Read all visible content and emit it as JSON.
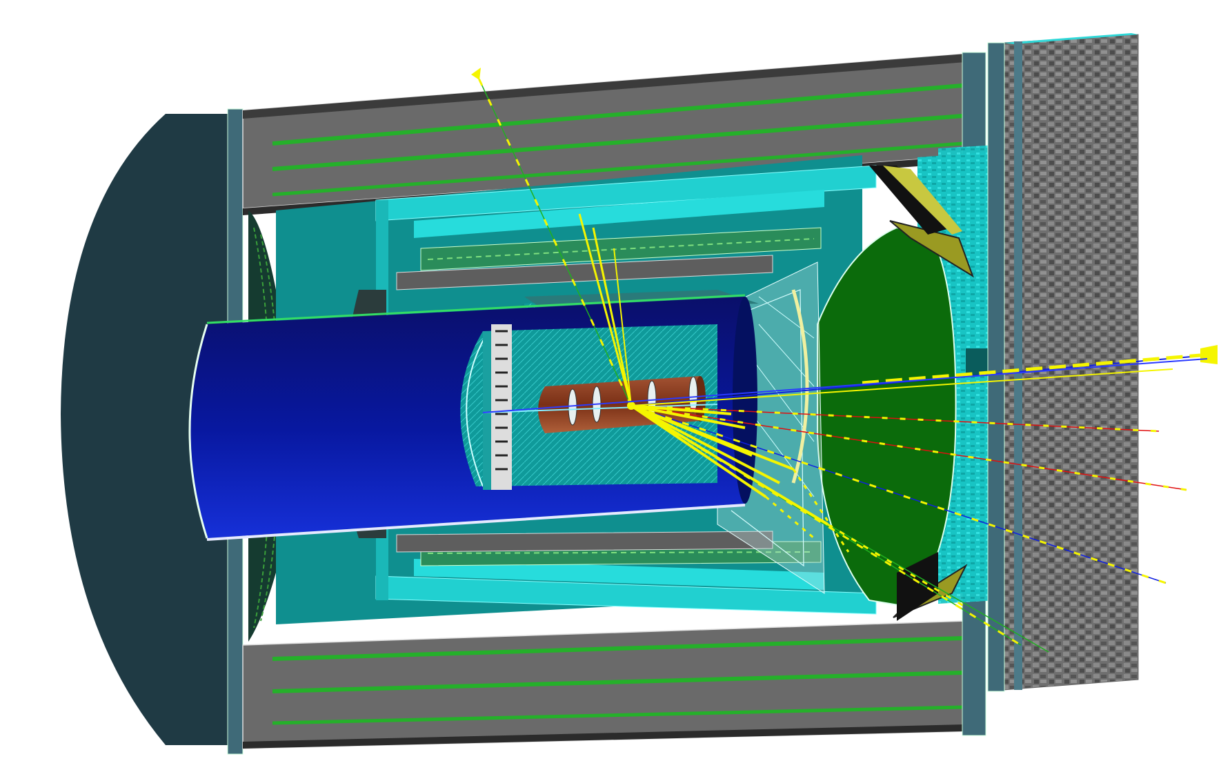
{
  "figure": {
    "title": "",
    "description_visible_text": ""
  },
  "colors": {
    "background": "#ffffff",
    "outer_shell": "#1f3a44",
    "yoke_grey": "#6a6a6a",
    "yoke_dark": "#3b3b3b",
    "green_layers": "#25b02a",
    "cyan": "#21d0d0",
    "cyan_dark": "#0d9b9b",
    "teal": "#0f8f8f",
    "blue_cyl": "#0a1f9a",
    "blue_dark": "#020e5a",
    "copper": "#8a3f22",
    "green_disc": "#0b6b0b",
    "olive": "#9a9a22",
    "wall_grey": "#7a7a7a",
    "track_yellow": "#f5f500",
    "track_red": "#e01010",
    "track_blue": "#1020e0",
    "track_green": "#20b020"
  },
  "components": [
    "outer-return-yoke",
    "barrel-muon-layers",
    "solenoid-cryostat",
    "electromagnetic-calorimeter",
    "drift-chamber",
    "vertex-detector",
    "forward-rich",
    "forward-calorimeter",
    "endcap-wall"
  ],
  "tracks": [
    {
      "name": "track-up-1",
      "color": "track_yellow"
    },
    {
      "name": "track-forward-1",
      "color": "track_yellow"
    },
    {
      "name": "track-forward-2",
      "color": "track_red"
    },
    {
      "name": "track-forward-3",
      "color": "track_blue"
    },
    {
      "name": "track-forward-4",
      "color": "track_yellow"
    },
    {
      "name": "track-forward-5",
      "color": "track_yellow"
    },
    {
      "name": "track-down-1",
      "color": "track_yellow"
    }
  ]
}
